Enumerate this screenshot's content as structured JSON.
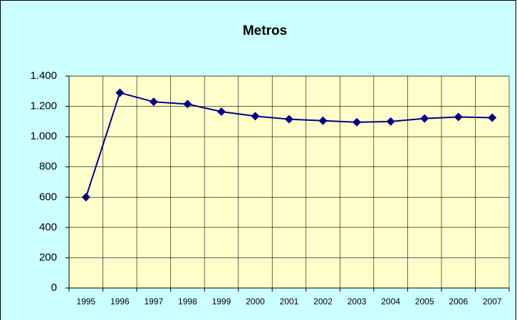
{
  "chart_data": {
    "type": "line",
    "title": "Metros",
    "categories": [
      "1995",
      "1996",
      "1997",
      "1998",
      "1999",
      "2000",
      "2001",
      "2002",
      "2003",
      "2004",
      "2005",
      "2006",
      "2007"
    ],
    "series": [
      {
        "name": "Metros",
        "color": "#000080",
        "values": [
          600,
          1290,
          1230,
          1215,
          1165,
          1135,
          1115,
          1105,
          1095,
          1100,
          1120,
          1130,
          1125
        ]
      }
    ],
    "ylim": [
      0,
      1400
    ],
    "yticks": [
      0,
      200,
      400,
      600,
      800,
      {
        "value": 1000,
        "label": "1.000"
      },
      {
        "value": 1200,
        "label": "1.200"
      },
      {
        "value": 1400,
        "label": "1.400"
      }
    ],
    "grid": true,
    "background": "#ccffff",
    "plot_background": "#ffffcc"
  }
}
